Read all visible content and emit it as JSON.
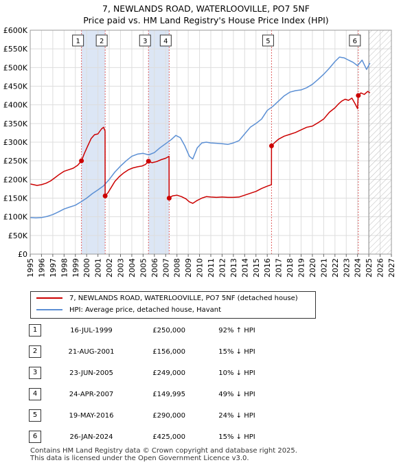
{
  "title_line1": "7, NEWLANDS ROAD, WATERLOOVILLE, PO7 5NF",
  "title_line2": "Price paid vs. HM Land Registry's House Price Index (HPI)",
  "colors": {
    "property": "#cc0000",
    "hpi": "#5b8fd4",
    "shade": "#dce6f5",
    "marker_line": "#e06060"
  },
  "chart_data": {
    "type": "line",
    "ylim": [
      0,
      600000
    ],
    "xlim": [
      1995,
      2027
    ],
    "y_ticks": [
      0,
      50000,
      100000,
      150000,
      200000,
      250000,
      300000,
      350000,
      400000,
      450000,
      500000,
      550000,
      600000
    ],
    "y_tick_labels": [
      "£0",
      "£50K",
      "£100K",
      "£150K",
      "£200K",
      "£250K",
      "£300K",
      "£350K",
      "£400K",
      "£450K",
      "£500K",
      "£550K",
      "£600K"
    ],
    "x_tick_labels": [
      "1995",
      "1996",
      "1997",
      "1998",
      "1999",
      "2000",
      "2001",
      "2002",
      "2003",
      "2004",
      "2005",
      "2006",
      "2007",
      "2008",
      "2009",
      "2010",
      "2011",
      "2012",
      "2013",
      "2014",
      "2015",
      "2016",
      "2017",
      "2018",
      "2019",
      "2020",
      "2021",
      "2022",
      "2023",
      "2024",
      "2025",
      "2026",
      "2027"
    ],
    "forecast_start": 2025.0,
    "shaded_spans": [
      [
        1999.54,
        2001.64
      ],
      [
        2005.48,
        2007.31
      ]
    ],
    "series": [
      {
        "name": "7, NEWLANDS ROAD, WATERLOOVILLE, PO7 5NF (detached house)",
        "x": [
          1995.0,
          1995.3,
          1995.6,
          1996.0,
          1996.4,
          1996.8,
          1997.2,
          1997.6,
          1998.0,
          1998.4,
          1998.8,
          1999.2,
          1999.54,
          1999.8,
          2000.1,
          2000.4,
          2000.7,
          2001.0,
          2001.3,
          2001.5,
          2001.63,
          2001.64,
          2001.9,
          2002.2,
          2002.5,
          2002.9,
          2003.3,
          2003.7,
          2004.1,
          2004.5,
          2004.9,
          2005.2,
          2005.48,
          2005.8,
          2006.2,
          2006.6,
          2007.0,
          2007.3,
          2007.31,
          2007.6,
          2008.0,
          2008.4,
          2008.8,
          2009.1,
          2009.4,
          2009.8,
          2010.2,
          2010.6,
          2011.0,
          2011.5,
          2012.0,
          2012.5,
          2013.0,
          2013.5,
          2014.0,
          2014.5,
          2015.0,
          2015.5,
          2016.0,
          2016.37,
          2016.38,
          2016.7,
          2017.0,
          2017.5,
          2018.0,
          2018.5,
          2019.0,
          2019.5,
          2020.0,
          2020.5,
          2021.0,
          2021.5,
          2022.0,
          2022.3,
          2022.6,
          2022.9,
          2023.2,
          2023.5,
          2023.8,
          2024.0,
          2024.06,
          2024.07,
          2024.3,
          2024.6,
          2024.9,
          2025.1
        ],
        "values": [
          188000,
          186000,
          184000,
          186000,
          190000,
          196000,
          205000,
          214000,
          222000,
          226000,
          230000,
          238000,
          250000,
          270000,
          290000,
          310000,
          320000,
          322000,
          335000,
          340000,
          330000,
          156000,
          165000,
          180000,
          195000,
          208000,
          218000,
          226000,
          231000,
          234000,
          236000,
          240000,
          249000,
          245000,
          248000,
          253000,
          257000,
          262000,
          149995,
          156000,
          158000,
          154000,
          148000,
          140000,
          136000,
          144000,
          150000,
          154000,
          153000,
          152000,
          153000,
          152000,
          152000,
          153000,
          158000,
          163000,
          168000,
          176000,
          182000,
          186000,
          290000,
          300000,
          308000,
          316000,
          321000,
          326000,
          333000,
          340000,
          343000,
          352000,
          362000,
          380000,
          392000,
          402000,
          410000,
          415000,
          412000,
          418000,
          402000,
          390000,
          425000,
          425000,
          432000,
          428000,
          436000,
          432000
        ]
      },
      {
        "name": "HPI: Average price, detached house, Havant",
        "x": [
          1995.0,
          1995.5,
          1996.0,
          1996.5,
          1997.0,
          1997.5,
          1998.0,
          1998.5,
          1999.0,
          1999.5,
          2000.0,
          2000.5,
          2001.0,
          2001.5,
          2002.0,
          2002.5,
          2003.0,
          2003.5,
          2004.0,
          2004.5,
          2005.0,
          2005.5,
          2006.0,
          2006.5,
          2007.0,
          2007.5,
          2007.9,
          2008.3,
          2008.7,
          2009.1,
          2009.4,
          2009.8,
          2010.2,
          2010.6,
          2011.0,
          2011.5,
          2012.0,
          2012.5,
          2013.0,
          2013.5,
          2014.0,
          2014.5,
          2015.0,
          2015.5,
          2016.0,
          2016.5,
          2017.0,
          2017.5,
          2018.0,
          2018.5,
          2019.0,
          2019.5,
          2020.0,
          2020.5,
          2021.0,
          2021.5,
          2022.0,
          2022.4,
          2022.8,
          2023.2,
          2023.6,
          2024.0,
          2024.4,
          2024.8,
          2025.1
        ],
        "values": [
          98000,
          97000,
          98000,
          101000,
          106000,
          113000,
          121000,
          126000,
          131000,
          140000,
          150000,
          162000,
          172000,
          183000,
          200000,
          220000,
          236000,
          250000,
          262000,
          268000,
          270000,
          266000,
          272000,
          285000,
          296000,
          307000,
          318000,
          312000,
          290000,
          262000,
          255000,
          285000,
          298000,
          300000,
          298000,
          297000,
          296000,
          294000,
          298000,
          304000,
          322000,
          340000,
          350000,
          362000,
          385000,
          396000,
          410000,
          424000,
          434000,
          438000,
          440000,
          446000,
          455000,
          468000,
          482000,
          498000,
          516000,
          528000,
          526000,
          520000,
          514000,
          505000,
          520000,
          495000,
          512000
        ]
      }
    ],
    "sales": [
      {
        "n": "1",
        "x": 1999.54,
        "value": 250000,
        "date": "16-JUL-1999",
        "price": "£250,000",
        "hpi": "92% ↑ HPI"
      },
      {
        "n": "2",
        "x": 2001.64,
        "value": 156000,
        "date": "21-AUG-2001",
        "price": "£156,000",
        "hpi": "15% ↓ HPI"
      },
      {
        "n": "3",
        "x": 2005.48,
        "value": 249000,
        "date": "23-JUN-2005",
        "price": "£249,000",
        "hpi": "10% ↓ HPI"
      },
      {
        "n": "4",
        "x": 2007.31,
        "value": 149995,
        "date": "24-APR-2007",
        "price": "£149,995",
        "hpi": "49% ↓ HPI"
      },
      {
        "n": "5",
        "x": 2016.38,
        "value": 290000,
        "date": "19-MAY-2016",
        "price": "£290,000",
        "hpi": "24% ↓ HPI"
      },
      {
        "n": "6",
        "x": 2024.07,
        "value": 425000,
        "date": "26-JAN-2024",
        "price": "£425,000",
        "hpi": "15% ↓ HPI"
      }
    ]
  },
  "legend": {
    "property_label": "7, NEWLANDS ROAD, WATERLOOVILLE, PO7 5NF (detached house)",
    "hpi_label": "HPI: Average price, detached house, Havant"
  },
  "footer": {
    "line1": "Contains HM Land Registry data © Crown copyright and database right 2025.",
    "line2": "This data is licensed under the Open Government Licence v3.0."
  }
}
